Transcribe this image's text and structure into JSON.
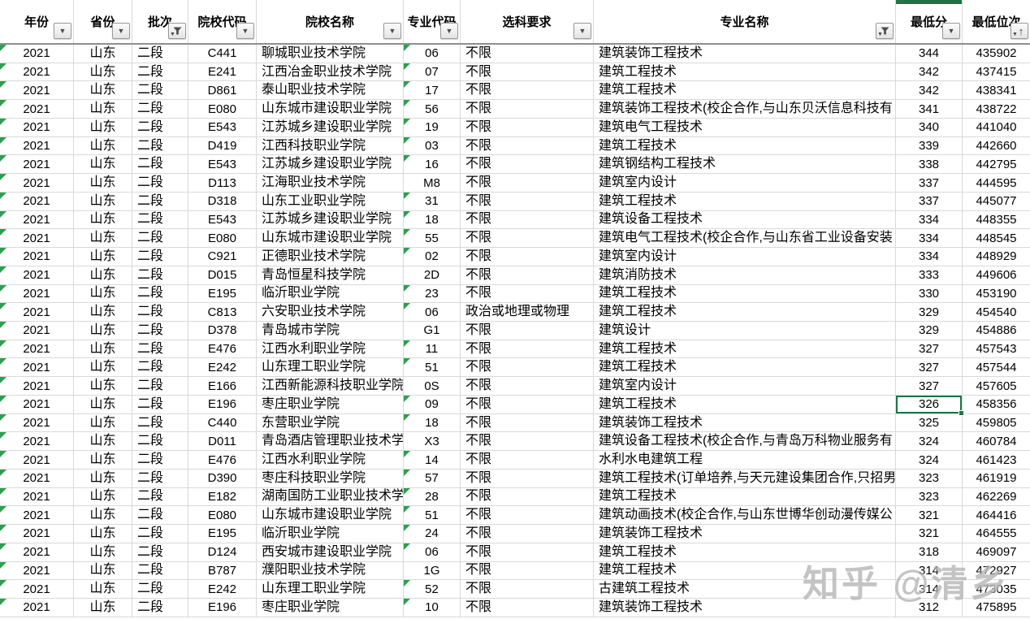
{
  "app": {
    "type": "spreadsheet-table",
    "description_visible": ""
  },
  "colors": {
    "selection_green": "#217346",
    "error_indicator_green": "#2e9e4f",
    "gridline": "#d9d9d9",
    "header_border": "#8f8f8f"
  },
  "columns": [
    {
      "key": "year",
      "label": "年份",
      "filter": "dropdown",
      "align": "center",
      "font": "fs15"
    },
    {
      "key": "province",
      "label": "省份",
      "filter": "dropdown",
      "align": "center",
      "font": "fs16"
    },
    {
      "key": "batch",
      "label": "批次",
      "filter": "funnel",
      "align": "left",
      "font": "fs16"
    },
    {
      "key": "college_code",
      "label": "院校代码",
      "filter": "dropdown",
      "align": "center",
      "font": "fs15"
    },
    {
      "key": "college_name",
      "label": "院校名称",
      "filter": "dropdown",
      "align": "left",
      "font": "fs16"
    },
    {
      "key": "major_code",
      "label": "专业代码",
      "filter": "dropdown",
      "align": "center",
      "font": "fs15"
    },
    {
      "key": "subject_req",
      "label": "选科要求",
      "filter": "dropdown",
      "align": "left",
      "font": "fs16"
    },
    {
      "key": "major_name",
      "label": "专业名称",
      "filter": "funnel",
      "align": "left",
      "font": "fs16"
    },
    {
      "key": "min_score",
      "label": "最低分",
      "filter": "sort-none",
      "align": "center",
      "font": "fs15"
    },
    {
      "key": "min_rank",
      "label": "最低位次",
      "filter": "sort-asc",
      "align": "center",
      "font": "fs15"
    }
  ],
  "table": {
    "rows": [
      {
        "year": "2021",
        "province": "山东",
        "batch": "二段",
        "college_code": "C441",
        "college_name": "聊城职业技术学院",
        "major_code": "06",
        "major_code_flag": true,
        "subject_req": "不限",
        "major_name": "建筑装饰工程技术",
        "min_score": "344",
        "min_rank": "435902"
      },
      {
        "year": "2021",
        "province": "山东",
        "batch": "二段",
        "college_code": "E241",
        "college_name": "江西冶金职业技术学院",
        "major_code": "07",
        "major_code_flag": true,
        "subject_req": "不限",
        "major_name": "建筑工程技术",
        "min_score": "342",
        "min_rank": "437415"
      },
      {
        "year": "2021",
        "province": "山东",
        "batch": "二段",
        "college_code": "D861",
        "college_name": "泰山职业技术学院",
        "major_code": "17",
        "major_code_flag": true,
        "subject_req": "不限",
        "major_name": "建筑工程技术",
        "min_score": "342",
        "min_rank": "438341"
      },
      {
        "year": "2021",
        "province": "山东",
        "batch": "二段",
        "college_code": "E080",
        "college_name": "山东城市建设职业学院",
        "major_code": "56",
        "major_code_flag": true,
        "subject_req": "不限",
        "major_name": "建筑装饰工程技术(校企合作,与山东贝沃信息科技有",
        "min_score": "341",
        "min_rank": "438722"
      },
      {
        "year": "2021",
        "province": "山东",
        "batch": "二段",
        "college_code": "E543",
        "college_name": "江苏城乡建设职业学院",
        "major_code": "19",
        "major_code_flag": true,
        "subject_req": "不限",
        "major_name": "建筑电气工程技术",
        "min_score": "340",
        "min_rank": "441040"
      },
      {
        "year": "2021",
        "province": "山东",
        "batch": "二段",
        "college_code": "D419",
        "college_name": "江西科技职业学院",
        "major_code": "03",
        "major_code_flag": true,
        "subject_req": "不限",
        "major_name": "建筑工程技术",
        "min_score": "339",
        "min_rank": "442660"
      },
      {
        "year": "2021",
        "province": "山东",
        "batch": "二段",
        "college_code": "E543",
        "college_name": "江苏城乡建设职业学院",
        "major_code": "16",
        "major_code_flag": true,
        "subject_req": "不限",
        "major_name": "建筑钢结构工程技术",
        "min_score": "338",
        "min_rank": "442795"
      },
      {
        "year": "2021",
        "province": "山东",
        "batch": "二段",
        "college_code": "D113",
        "college_name": "江海职业技术学院",
        "major_code": "M8",
        "major_code_flag": false,
        "subject_req": "不限",
        "major_name": "建筑室内设计",
        "min_score": "337",
        "min_rank": "444595"
      },
      {
        "year": "2021",
        "province": "山东",
        "batch": "二段",
        "college_code": "D318",
        "college_name": "山东工业职业学院",
        "major_code": "31",
        "major_code_flag": true,
        "subject_req": "不限",
        "major_name": "建筑工程技术",
        "min_score": "337",
        "min_rank": "445077"
      },
      {
        "year": "2021",
        "province": "山东",
        "batch": "二段",
        "college_code": "E543",
        "college_name": "江苏城乡建设职业学院",
        "major_code": "18",
        "major_code_flag": true,
        "subject_req": "不限",
        "major_name": "建筑设备工程技术",
        "min_score": "334",
        "min_rank": "448355"
      },
      {
        "year": "2021",
        "province": "山东",
        "batch": "二段",
        "college_code": "E080",
        "college_name": "山东城市建设职业学院",
        "major_code": "55",
        "major_code_flag": true,
        "subject_req": "不限",
        "major_name": "建筑电气工程技术(校企合作,与山东省工业设备安装",
        "min_score": "334",
        "min_rank": "448545"
      },
      {
        "year": "2021",
        "province": "山东",
        "batch": "二段",
        "college_code": "C921",
        "college_name": "正德职业技术学院",
        "major_code": "02",
        "major_code_flag": true,
        "subject_req": "不限",
        "major_name": "建筑室内设计",
        "min_score": "334",
        "min_rank": "448929"
      },
      {
        "year": "2021",
        "province": "山东",
        "batch": "二段",
        "college_code": "D015",
        "college_name": "青岛恒星科技学院",
        "major_code": "2D",
        "major_code_flag": false,
        "subject_req": "不限",
        "major_name": "建筑消防技术",
        "min_score": "333",
        "min_rank": "449606"
      },
      {
        "year": "2021",
        "province": "山东",
        "batch": "二段",
        "college_code": "E195",
        "college_name": "临沂职业学院",
        "major_code": "23",
        "major_code_flag": true,
        "subject_req": "不限",
        "major_name": "建筑工程技术",
        "min_score": "330",
        "min_rank": "453190"
      },
      {
        "year": "2021",
        "province": "山东",
        "batch": "二段",
        "college_code": "C813",
        "college_name": "六安职业技术学院",
        "major_code": "06",
        "major_code_flag": true,
        "subject_req": "政治或地理或物理",
        "major_name": "建筑工程技术",
        "min_score": "329",
        "min_rank": "454540"
      },
      {
        "year": "2021",
        "province": "山东",
        "batch": "二段",
        "college_code": "D378",
        "college_name": "青岛城市学院",
        "major_code": "G1",
        "major_code_flag": false,
        "subject_req": "不限",
        "major_name": "建筑设计",
        "min_score": "329",
        "min_rank": "454886"
      },
      {
        "year": "2021",
        "province": "山东",
        "batch": "二段",
        "college_code": "E476",
        "college_name": "江西水利职业学院",
        "major_code": "11",
        "major_code_flag": true,
        "subject_req": "不限",
        "major_name": "建筑工程技术",
        "min_score": "327",
        "min_rank": "457543"
      },
      {
        "year": "2021",
        "province": "山东",
        "batch": "二段",
        "college_code": "E242",
        "college_name": "山东理工职业学院",
        "major_code": "51",
        "major_code_flag": true,
        "subject_req": "不限",
        "major_name": "建筑工程技术",
        "min_score": "327",
        "min_rank": "457544"
      },
      {
        "year": "2021",
        "province": "山东",
        "batch": "二段",
        "college_code": "E166",
        "college_name": "江西新能源科技职业学院",
        "major_code": "0S",
        "major_code_flag": false,
        "subject_req": "不限",
        "major_name": "建筑室内设计",
        "min_score": "327",
        "min_rank": "457605"
      },
      {
        "year": "2021",
        "province": "山东",
        "batch": "二段",
        "college_code": "E196",
        "college_name": "枣庄职业学院",
        "major_code": "09",
        "major_code_flag": true,
        "subject_req": "不限",
        "major_name": "建筑工程技术",
        "min_score": "326",
        "min_rank": "458356"
      },
      {
        "year": "2021",
        "province": "山东",
        "batch": "二段",
        "college_code": "C440",
        "college_name": "东营职业学院",
        "major_code": "18",
        "major_code_flag": true,
        "subject_req": "不限",
        "major_name": "建筑装饰工程技术",
        "min_score": "325",
        "min_rank": "459805"
      },
      {
        "year": "2021",
        "province": "山东",
        "batch": "二段",
        "college_code": "D011",
        "college_name": "青岛酒店管理职业技术学院",
        "major_code": "X3",
        "major_code_flag": false,
        "subject_req": "不限",
        "major_name": "建筑设备工程技术(校企合作,与青岛万科物业服务有",
        "min_score": "324",
        "min_rank": "460784"
      },
      {
        "year": "2021",
        "province": "山东",
        "batch": "二段",
        "college_code": "E476",
        "college_name": "江西水利职业学院",
        "major_code": "14",
        "major_code_flag": true,
        "subject_req": "不限",
        "major_name": "水利水电建筑工程",
        "min_score": "324",
        "min_rank": "461423"
      },
      {
        "year": "2021",
        "province": "山东",
        "batch": "二段",
        "college_code": "D390",
        "college_name": "枣庄科技职业学院",
        "major_code": "57",
        "major_code_flag": true,
        "subject_req": "不限",
        "major_name": "建筑工程技术(订单培养,与天元建设集团合作,只招男",
        "min_score": "323",
        "min_rank": "461919"
      },
      {
        "year": "2021",
        "province": "山东",
        "batch": "二段",
        "college_code": "E182",
        "college_name": "湖南国防工业职业技术学院",
        "major_code": "28",
        "major_code_flag": true,
        "subject_req": "不限",
        "major_name": "建筑工程技术",
        "min_score": "323",
        "min_rank": "462269"
      },
      {
        "year": "2021",
        "province": "山东",
        "batch": "二段",
        "college_code": "E080",
        "college_name": "山东城市建设职业学院",
        "major_code": "51",
        "major_code_flag": true,
        "subject_req": "不限",
        "major_name": "建筑动画技术(校企合作,与山东世博华创动漫传媒公",
        "min_score": "321",
        "min_rank": "464416"
      },
      {
        "year": "2021",
        "province": "山东",
        "batch": "二段",
        "college_code": "E195",
        "college_name": "临沂职业学院",
        "major_code": "24",
        "major_code_flag": true,
        "subject_req": "不限",
        "major_name": "建筑装饰工程技术",
        "min_score": "321",
        "min_rank": "464555"
      },
      {
        "year": "2021",
        "province": "山东",
        "batch": "二段",
        "college_code": "D124",
        "college_name": "西安城市建设职业学院",
        "major_code": "06",
        "major_code_flag": true,
        "subject_req": "不限",
        "major_name": "建筑工程技术",
        "min_score": "318",
        "min_rank": "469097"
      },
      {
        "year": "2021",
        "province": "山东",
        "batch": "二段",
        "college_code": "B787",
        "college_name": "濮阳职业技术学院",
        "major_code": "1G",
        "major_code_flag": false,
        "subject_req": "不限",
        "major_name": "建筑工程技术",
        "min_score": "314",
        "min_rank": "472927"
      },
      {
        "year": "2021",
        "province": "山东",
        "batch": "二段",
        "college_code": "E242",
        "college_name": "山东理工职业学院",
        "major_code": "52",
        "major_code_flag": true,
        "subject_req": "不限",
        "major_name": "古建筑工程技术",
        "min_score": "314",
        "min_rank": "473035"
      },
      {
        "year": "2021",
        "province": "山东",
        "batch": "二段",
        "college_code": "E196",
        "college_name": "枣庄职业学院",
        "major_code": "10",
        "major_code_flag": true,
        "subject_req": "不限",
        "major_name": "建筑装饰工程技术",
        "min_score": "312",
        "min_rank": "475895"
      }
    ]
  },
  "selection": {
    "row_index": 19,
    "column_key": "min_score",
    "selected_value": "326"
  },
  "watermark": {
    "text": "知乎 @清乡"
  }
}
